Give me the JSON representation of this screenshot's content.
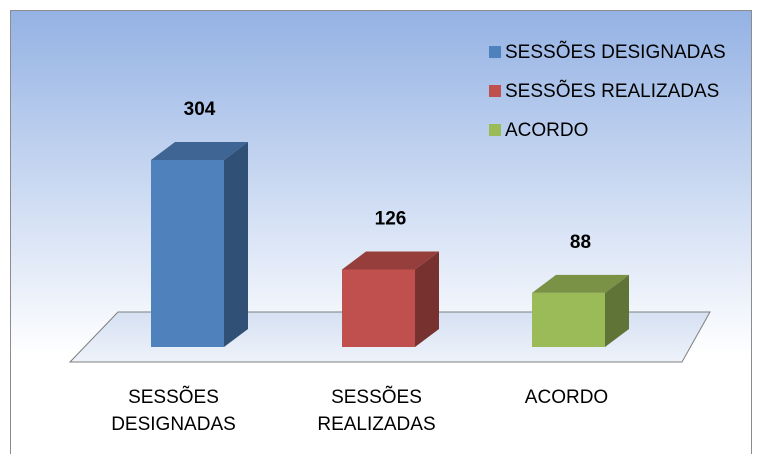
{
  "chart_data": {
    "type": "bar3d",
    "categories": [
      "SESSÕES DESIGNADAS",
      "SESSÕES REALIZADAS",
      "ACORDO"
    ],
    "values": [
      304,
      126,
      88
    ],
    "colors": [
      "#4f81bd",
      "#c0504d",
      "#9bbb59"
    ],
    "legend": "top-right"
  }
}
